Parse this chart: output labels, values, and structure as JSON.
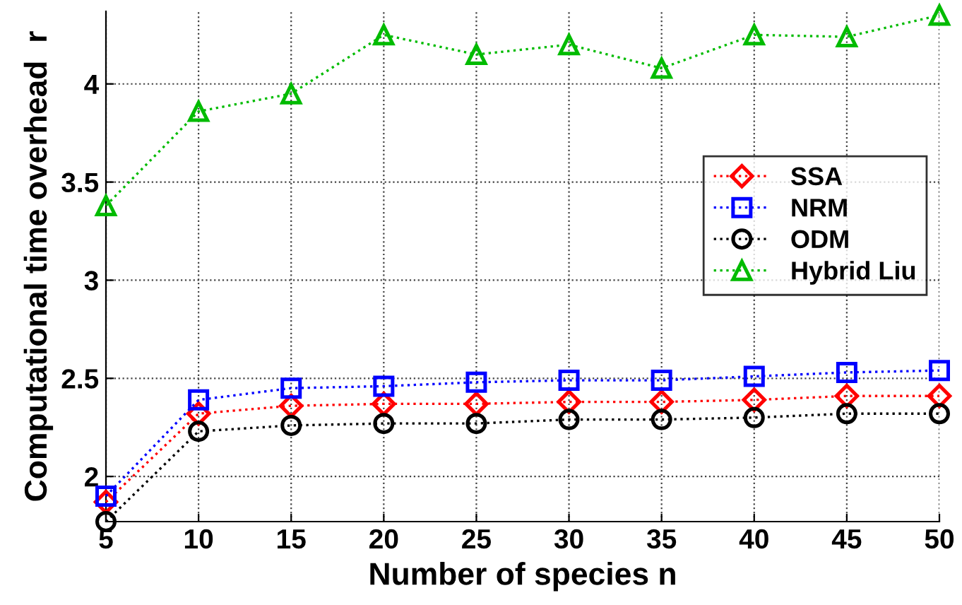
{
  "chart_data": {
    "type": "line",
    "xlabel": "Number of species n",
    "ylabel": "Computational time overhead  r",
    "x": [
      5,
      10,
      15,
      20,
      25,
      30,
      35,
      40,
      45,
      50
    ],
    "xlim": [
      5,
      50
    ],
    "xticks": [
      5,
      10,
      15,
      20,
      25,
      30,
      35,
      40,
      45,
      50
    ],
    "ylim": [
      1.77,
      4.37
    ],
    "yticks": [
      2,
      2.5,
      3,
      3.5,
      4
    ],
    "grid": true,
    "legend": "right",
    "line_style": "dotted",
    "series": [
      {
        "name": "SSA",
        "color": "#ff0000",
        "marker": "diamond",
        "values": [
          1.87,
          2.32,
          2.36,
          2.37,
          2.37,
          2.38,
          2.38,
          2.39,
          2.41,
          2.41
        ]
      },
      {
        "name": "NRM",
        "color": "#0000ff",
        "marker": "square",
        "values": [
          1.9,
          2.39,
          2.45,
          2.46,
          2.48,
          2.49,
          2.49,
          2.51,
          2.53,
          2.54
        ]
      },
      {
        "name": "ODM",
        "color": "#000000",
        "marker": "circle",
        "values": [
          1.77,
          2.23,
          2.26,
          2.27,
          2.27,
          2.29,
          2.29,
          2.3,
          2.32,
          2.32
        ]
      },
      {
        "name": "Hybrid Liu",
        "color": "#00bb00",
        "marker": "triangle",
        "values": [
          3.38,
          3.86,
          3.95,
          4.25,
          4.15,
          4.2,
          4.08,
          4.25,
          4.24,
          4.35
        ]
      }
    ]
  }
}
